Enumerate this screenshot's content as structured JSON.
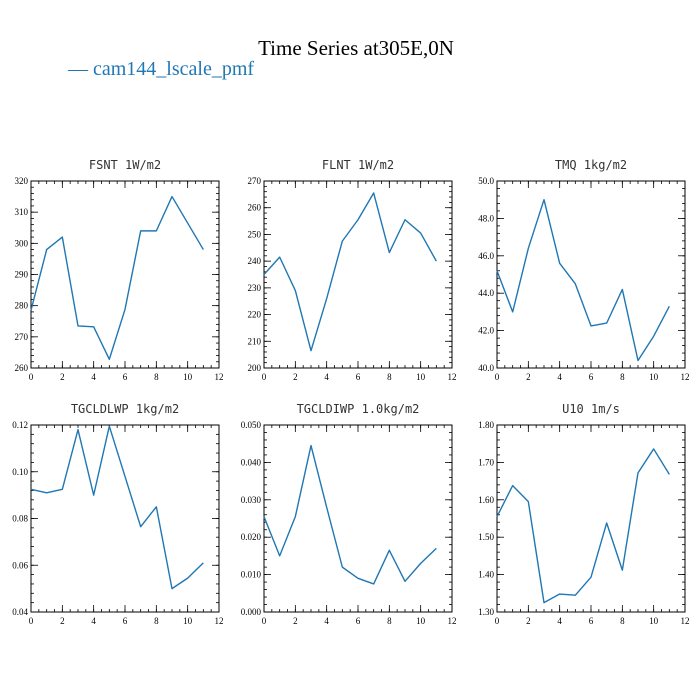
{
  "figure": {
    "title": "Time Series at305E,0N",
    "legend": {
      "label": "cam144_lscale_pmf",
      "color": "#1f77b4"
    }
  },
  "chart_data": [
    {
      "type": "line",
      "title": "FSNT   1W/m2",
      "x": [
        0,
        1,
        2,
        3,
        4,
        5,
        6,
        7,
        8,
        9,
        10,
        11
      ],
      "series": [
        {
          "name": "cam144_lscale_pmf",
          "color": "#1f77b4",
          "values": [
            278.5,
            298,
            302,
            273.5,
            273.2,
            262.8,
            278.8,
            304,
            304,
            315,
            306.5,
            298
          ]
        }
      ],
      "xlim": [
        0,
        12
      ],
      "ylim": [
        260,
        320
      ],
      "xticks": [
        "0",
        "2",
        "4",
        "6",
        "8",
        "10",
        "12"
      ],
      "yticks": [
        "260",
        "270",
        "280",
        "290",
        "300",
        "310",
        "320"
      ],
      "xtick_values": [
        0,
        2,
        4,
        6,
        8,
        10,
        12
      ],
      "ytick_values": [
        260,
        270,
        280,
        290,
        300,
        310,
        320
      ],
      "xminor": 0.5,
      "yminor": 2
    },
    {
      "type": "line",
      "title": "FLNT   1W/m2",
      "x": [
        0,
        1,
        2,
        3,
        4,
        5,
        6,
        7,
        8,
        9,
        10,
        11
      ],
      "series": [
        {
          "name": "cam144_lscale_pmf",
          "color": "#1f77b4",
          "values": [
            235,
            241.5,
            229,
            206.5,
            226,
            247.5,
            255.5,
            265.5,
            243.2,
            255.5,
            250.5,
            240
          ]
        }
      ],
      "xlim": [
        0,
        12
      ],
      "ylim": [
        200,
        270
      ],
      "xticks": [
        "0",
        "2",
        "4",
        "6",
        "8",
        "10",
        "12"
      ],
      "yticks": [
        "200",
        "210",
        "220",
        "230",
        "240",
        "250",
        "260",
        "270"
      ],
      "xtick_values": [
        0,
        2,
        4,
        6,
        8,
        10,
        12
      ],
      "ytick_values": [
        200,
        210,
        220,
        230,
        240,
        250,
        260,
        270
      ],
      "xminor": 0.5,
      "yminor": 2
    },
    {
      "type": "line",
      "title": "TMQ   1kg/m2",
      "x": [
        0,
        1,
        2,
        3,
        4,
        5,
        6,
        7,
        8,
        9,
        10,
        11
      ],
      "series": [
        {
          "name": "cam144_lscale_pmf",
          "color": "#1f77b4",
          "values": [
            45.2,
            43.0,
            46.4,
            49.0,
            45.6,
            44.5,
            42.25,
            42.4,
            44.2,
            40.4,
            41.7,
            43.3
          ]
        }
      ],
      "xlim": [
        0,
        12
      ],
      "ylim": [
        40,
        50
      ],
      "xticks": [
        "0",
        "2",
        "4",
        "6",
        "8",
        "10",
        "12"
      ],
      "yticks": [
        "40.0",
        "42.0",
        "44.0",
        "46.0",
        "48.0",
        "50.0"
      ],
      "xtick_values": [
        0,
        2,
        4,
        6,
        8,
        10,
        12
      ],
      "ytick_values": [
        40,
        42,
        44,
        46,
        48,
        50
      ],
      "xminor": 0.5,
      "yminor": 0.4
    },
    {
      "type": "line",
      "title": "TGCLDLWP   1kg/m2",
      "x": [
        0,
        1,
        2,
        3,
        4,
        5,
        6,
        7,
        8,
        9,
        10,
        11
      ],
      "series": [
        {
          "name": "cam144_lscale_pmf",
          "color": "#1f77b4",
          "values": [
            0.0925,
            0.091,
            0.0925,
            0.118,
            0.09,
            0.1195,
            0.098,
            0.0765,
            0.085,
            0.05,
            0.0545,
            0.061
          ]
        }
      ],
      "xlim": [
        0,
        12
      ],
      "ylim": [
        0.04,
        0.12
      ],
      "xticks": [
        "0",
        "2",
        "4",
        "6",
        "8",
        "10",
        "12"
      ],
      "yticks": [
        "0.04",
        "0.06",
        "0.08",
        "0.10",
        "0.12"
      ],
      "xtick_values": [
        0,
        2,
        4,
        6,
        8,
        10,
        12
      ],
      "ytick_values": [
        0.04,
        0.06,
        0.08,
        0.1,
        0.12
      ],
      "xminor": 0.5,
      "yminor": 0.004
    },
    {
      "type": "line",
      "title": "TGCLDIWP   1.0kg/m2",
      "x": [
        0,
        1,
        2,
        3,
        4,
        5,
        6,
        7,
        8,
        9,
        10,
        11
      ],
      "series": [
        {
          "name": "cam144_lscale_pmf",
          "color": "#1f77b4",
          "values": [
            0.0255,
            0.015,
            0.0255,
            0.0445,
            0.028,
            0.012,
            0.009,
            0.0075,
            0.0165,
            0.0082,
            0.013,
            0.017
          ]
        }
      ],
      "xlim": [
        0,
        12
      ],
      "ylim": [
        0,
        0.05
      ],
      "xticks": [
        "0",
        "2",
        "4",
        "6",
        "8",
        "10",
        "12"
      ],
      "yticks": [
        "0.000",
        "0.010",
        "0.020",
        "0.030",
        "0.040",
        "0.050"
      ],
      "xtick_values": [
        0,
        2,
        4,
        6,
        8,
        10,
        12
      ],
      "ytick_values": [
        0,
        0.01,
        0.02,
        0.03,
        0.04,
        0.05
      ],
      "xminor": 0.5,
      "yminor": 0.002
    },
    {
      "type": "line",
      "title": "U10   1m/s",
      "x": [
        0,
        1,
        2,
        3,
        4,
        5,
        6,
        7,
        8,
        9,
        10,
        11
      ],
      "series": [
        {
          "name": "cam144_lscale_pmf",
          "color": "#1f77b4",
          "values": [
            1.555,
            1.638,
            1.595,
            1.325,
            1.348,
            1.345,
            1.393,
            1.538,
            1.412,
            1.672,
            1.736,
            1.668
          ]
        }
      ],
      "xlim": [
        0,
        12
      ],
      "ylim": [
        1.3,
        1.8
      ],
      "xticks": [
        "0",
        "2",
        "4",
        "6",
        "8",
        "10",
        "12"
      ],
      "yticks": [
        "1.30",
        "1.40",
        "1.50",
        "1.60",
        "1.70",
        "1.80"
      ],
      "xtick_values": [
        0,
        2,
        4,
        6,
        8,
        10,
        12
      ],
      "ytick_values": [
        1.3,
        1.4,
        1.5,
        1.6,
        1.7,
        1.8
      ],
      "xminor": 0.5,
      "yminor": 0.02
    }
  ]
}
